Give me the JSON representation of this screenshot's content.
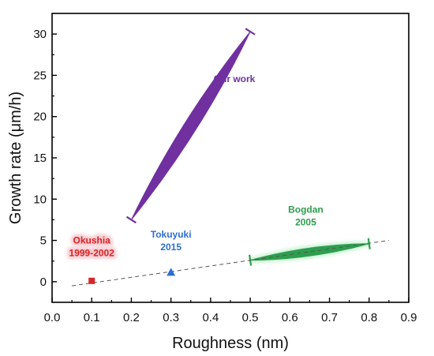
{
  "chart_data": {
    "type": "scatter",
    "title": "",
    "xlabel": "Roughness (nm)",
    "ylabel": "Growth rate (μm/h)",
    "xlim": [
      0.0,
      0.9
    ],
    "ylim": [
      -2.5,
      32.5
    ],
    "xticks": [
      "0.0",
      "0.1",
      "0.2",
      "0.3",
      "0.4",
      "0.5",
      "0.6",
      "0.7",
      "0.8",
      "0.9"
    ],
    "yticks": [
      "0",
      "5",
      "10",
      "15",
      "20",
      "25",
      "30"
    ],
    "grid": false,
    "trendline": {
      "style": "dashed",
      "x": [
        0.05,
        0.85
      ],
      "y": [
        -0.5,
        5.0
      ]
    },
    "series": [
      {
        "marker": "range-band",
        "color": "#7030a0",
        "x": [
          0.2,
          0.5
        ],
        "y": [
          7.5,
          30.3
        ],
        "annotation": {
          "lines": [
            "Our work"
          ],
          "x": 0.46,
          "y": 24.2
        }
      },
      {
        "marker": "range-band",
        "color": "#2e9e4e",
        "x": [
          0.5,
          0.8
        ],
        "y": [
          2.6,
          4.6
        ],
        "annotation": {
          "lines": [
            "Bogdan",
            "2005"
          ],
          "x": 0.64,
          "y": 6.8
        }
      },
      {
        "marker": "square",
        "color": "#d62728",
        "x": [
          0.1
        ],
        "y": [
          0.1
        ],
        "annotation": {
          "lines": [
            "Okushia",
            "1999-2002"
          ],
          "x": 0.1,
          "y": 3.1
        }
      },
      {
        "marker": "triangle",
        "color": "#2e6fcf",
        "x": [
          0.3
        ],
        "y": [
          1.1
        ],
        "annotation": {
          "lines": [
            "Tokuyuki",
            "2015"
          ],
          "x": 0.3,
          "y": 3.8
        }
      }
    ]
  }
}
